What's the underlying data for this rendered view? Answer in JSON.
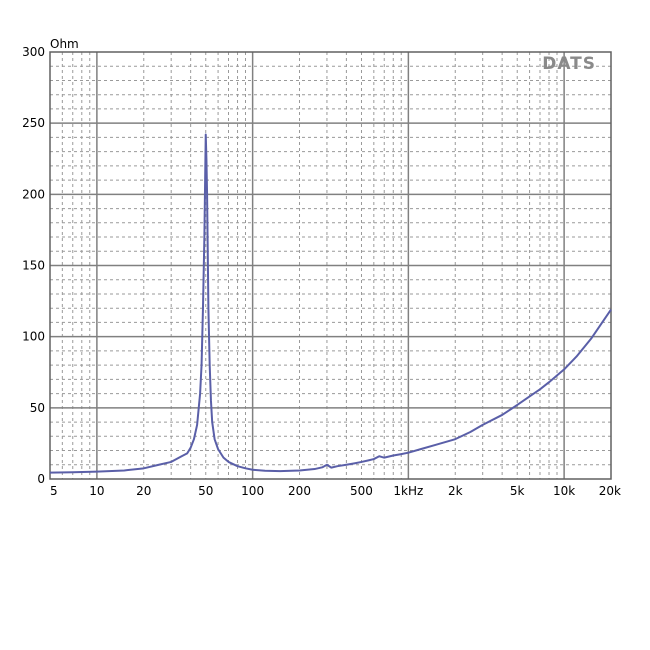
{
  "chart_data": {
    "type": "line",
    "title": "",
    "xlabel": "",
    "ylabel": "Ohm",
    "x_scale": "log",
    "xlim": [
      5,
      20000
    ],
    "ylim": [
      0,
      300
    ],
    "grid": true,
    "watermark": "DATS",
    "colors": {
      "line": "#5a5fa8",
      "grid_major": "#808080",
      "grid_minor": "#9a9a9a",
      "frame": "#606060"
    },
    "y_ticks": [
      {
        "value": 0,
        "label": "0"
      },
      {
        "value": 50,
        "label": "50"
      },
      {
        "value": 100,
        "label": "100"
      },
      {
        "value": 150,
        "label": "150"
      },
      {
        "value": 200,
        "label": "200"
      },
      {
        "value": 250,
        "label": "250"
      },
      {
        "value": 300,
        "label": "300"
      }
    ],
    "x_ticks": [
      {
        "value": 5,
        "label": "5"
      },
      {
        "value": 10,
        "label": "10"
      },
      {
        "value": 20,
        "label": "20"
      },
      {
        "value": 50,
        "label": "50"
      },
      {
        "value": 100,
        "label": "100"
      },
      {
        "value": 200,
        "label": "200"
      },
      {
        "value": 500,
        "label": "500"
      },
      {
        "value": 1000,
        "label": "1kHz"
      },
      {
        "value": 2000,
        "label": "2k"
      },
      {
        "value": 5000,
        "label": "5k"
      },
      {
        "value": 10000,
        "label": "10k"
      },
      {
        "value": 20000,
        "label": "20k"
      }
    ],
    "series": [
      {
        "color": "#5a5fa8",
        "x": [
          5,
          7,
          10,
          15,
          20,
          25,
          30,
          35,
          38,
          40,
          42,
          44,
          46,
          47,
          48,
          49,
          50,
          50.5,
          51,
          51.5,
          52,
          53,
          54,
          55,
          57,
          60,
          65,
          70,
          80,
          90,
          100,
          120,
          150,
          200,
          250,
          280,
          300,
          320,
          350,
          400,
          450,
          500,
          550,
          600,
          650,
          700,
          800,
          900,
          1000,
          1200,
          1500,
          2000,
          2500,
          3000,
          4000,
          5000,
          6000,
          7000,
          8000,
          10000,
          12000,
          15000,
          20000
        ],
        "y": [
          4.5,
          4.7,
          5.2,
          6,
          7.5,
          10,
          12,
          16,
          18,
          22,
          28,
          38,
          60,
          80,
          120,
          170,
          242,
          225,
          200,
          160,
          120,
          80,
          55,
          40,
          28,
          21,
          15,
          12,
          9,
          7.5,
          6.5,
          5.8,
          5.5,
          6,
          7,
          8.2,
          10,
          8,
          9,
          10,
          11,
          12,
          13,
          14,
          16,
          15,
          16.5,
          17.5,
          18.5,
          21,
          24,
          28,
          33,
          38,
          45,
          52,
          58,
          63,
          68,
          77,
          86,
          99,
          119
        ]
      }
    ]
  }
}
